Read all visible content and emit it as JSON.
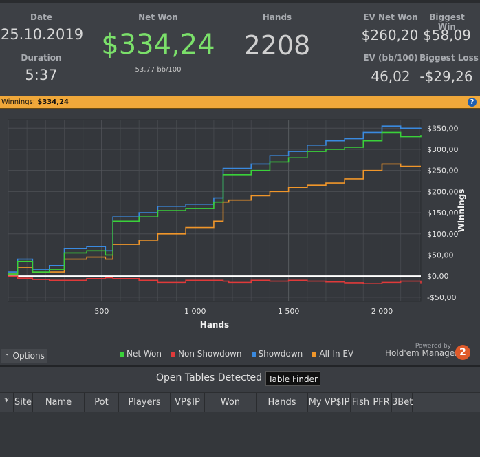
{
  "stats": {
    "date_label": "Date",
    "date": "25.10.2019",
    "duration_label": "Duration",
    "duration": "5:37",
    "netwon_label": "Net Won",
    "netwon": "$334,24",
    "bb": "53,77 bb/100",
    "hands_label": "Hands",
    "hands": "2208",
    "ev_label": "EV Net Won",
    "ev": "$260,20",
    "evbb_label": "EV (bb/100)",
    "evbb": "46,02",
    "bigwin_label": "Biggest Win",
    "bigwin": "$58,09",
    "bigloss_label": "Biggest Loss",
    "bigloss": "-$29,26"
  },
  "winnings": {
    "label": "Winnings:",
    "value": "$334,24",
    "help_icon": "?"
  },
  "colors": {
    "net_won": "#3ad13a",
    "non_showdown": "#e03a3a",
    "showdown": "#3a8ae0",
    "all_in_ev": "#f0962a",
    "accent": "#f0a83a"
  },
  "chart_data": {
    "type": "line",
    "xlabel": "Hands",
    "ylabel": "Winnings",
    "xlim": [
      0,
      2208
    ],
    "ylim": [
      -60,
      370
    ],
    "x_ticks": [
      500,
      1000,
      1500,
      2000
    ],
    "x_tick_labels": [
      "500",
      "1 000",
      "1 500",
      "2 000"
    ],
    "y_ticks": [
      -50,
      0,
      50,
      100,
      150,
      200,
      250,
      300,
      350
    ],
    "y_tick_labels": [
      "-$50,00",
      "$0,00",
      "$50,00",
      "$100,00",
      "$150,00",
      "$200,00",
      "$250,00",
      "$300,00",
      "$350,00"
    ],
    "x": [
      0,
      50,
      130,
      220,
      300,
      420,
      520,
      560,
      700,
      800,
      950,
      1100,
      1150,
      1180,
      1300,
      1400,
      1500,
      1600,
      1700,
      1800,
      1900,
      2000,
      2100,
      2208
    ],
    "series": [
      {
        "name": "Net Won",
        "values": [
          5,
          35,
          10,
          15,
          55,
          60,
          50,
          130,
          140,
          155,
          160,
          175,
          240,
          240,
          250,
          270,
          280,
          295,
          300,
          305,
          320,
          340,
          330,
          334
        ]
      },
      {
        "name": "Non Showdown",
        "values": [
          0,
          -5,
          -8,
          -10,
          -10,
          -6,
          -4,
          -6,
          -10,
          -15,
          -10,
          -10,
          -12,
          -15,
          -10,
          -12,
          -10,
          -12,
          -14,
          -16,
          -18,
          -15,
          -12,
          -17
        ]
      },
      {
        "name": "Showdown",
        "values": [
          10,
          40,
          15,
          25,
          65,
          70,
          60,
          140,
          150,
          165,
          170,
          185,
          255,
          255,
          265,
          285,
          295,
          310,
          320,
          325,
          340,
          355,
          350,
          351
        ]
      },
      {
        "name": "All-In EV",
        "values": [
          5,
          20,
          8,
          10,
          40,
          45,
          40,
          75,
          85,
          100,
          115,
          130,
          175,
          180,
          190,
          200,
          210,
          215,
          220,
          230,
          250,
          265,
          260,
          260
        ]
      }
    ],
    "legend": "bottom",
    "grid": true
  },
  "controls": {
    "options_label": "Options",
    "powered_by": "Powered by",
    "brand": "Hold'em Manager",
    "brand_num": "2"
  },
  "tables": {
    "title": "Open Tables Detected",
    "finder_button": "Table Finder",
    "columns": [
      "*",
      "Site",
      "Name",
      "Pot",
      "Players",
      "VP$IP",
      "Won",
      "Hands",
      "My VP$IP",
      "Fish",
      "PFR",
      "3Bet"
    ]
  }
}
